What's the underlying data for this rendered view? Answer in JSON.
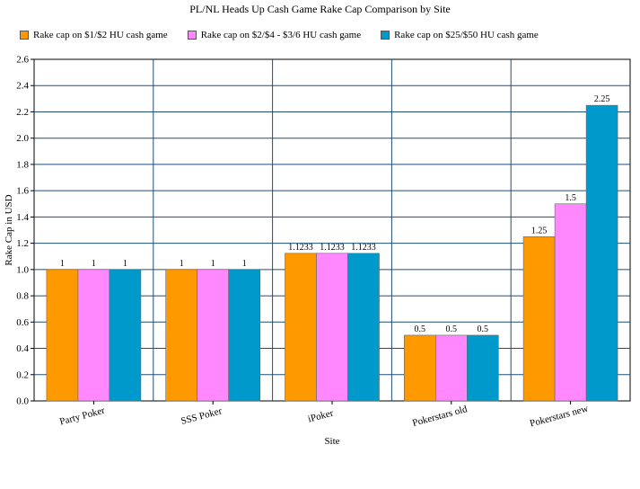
{
  "colors": {
    "series": [
      "#ff9900",
      "#ff88ff",
      "#0099cc"
    ],
    "grid": "#1f4e79",
    "axis": "#000000",
    "background": "#ffffff"
  },
  "chart_data": {
    "type": "bar",
    "title": "PL/NL Heads Up Cash Game Rake Cap Comparison by Site",
    "xlabel": "Site",
    "ylabel": "Rake Cap in USD",
    "ylim": [
      0,
      2.6
    ],
    "ytick_step": 0.2,
    "yticks": [
      "0.0",
      "0.2",
      "0.4",
      "0.6",
      "0.8",
      "1.0",
      "1.2",
      "1.4",
      "1.6",
      "1.8",
      "2.0",
      "2.2",
      "2.4",
      "2.6"
    ],
    "grid": true,
    "legend_position": "top",
    "categories": [
      "Party Poker",
      "SSS Poker",
      "iPoker",
      "Pokerstars old",
      "Pokerstars new"
    ],
    "series": [
      {
        "name": "Rake cap on $1/$2 HU cash game",
        "values": [
          1,
          1,
          1.1233,
          0.5,
          1.25
        ],
        "labels": [
          "1",
          "1",
          "1.1233",
          "0.5",
          "1.25"
        ]
      },
      {
        "name": "Rake cap on $2/$4 - $3/6 HU cash game",
        "values": [
          1,
          1,
          1.1233,
          0.5,
          1.5
        ],
        "labels": [
          "1",
          "1",
          "1.1233",
          "0.5",
          "1.5"
        ]
      },
      {
        "name": "Rake cap on $25/$50 HU cash game",
        "values": [
          1,
          1,
          1.1233,
          0.5,
          2.25
        ],
        "labels": [
          "1",
          "1",
          "1.1233",
          "0.5",
          "2.25"
        ]
      }
    ]
  }
}
